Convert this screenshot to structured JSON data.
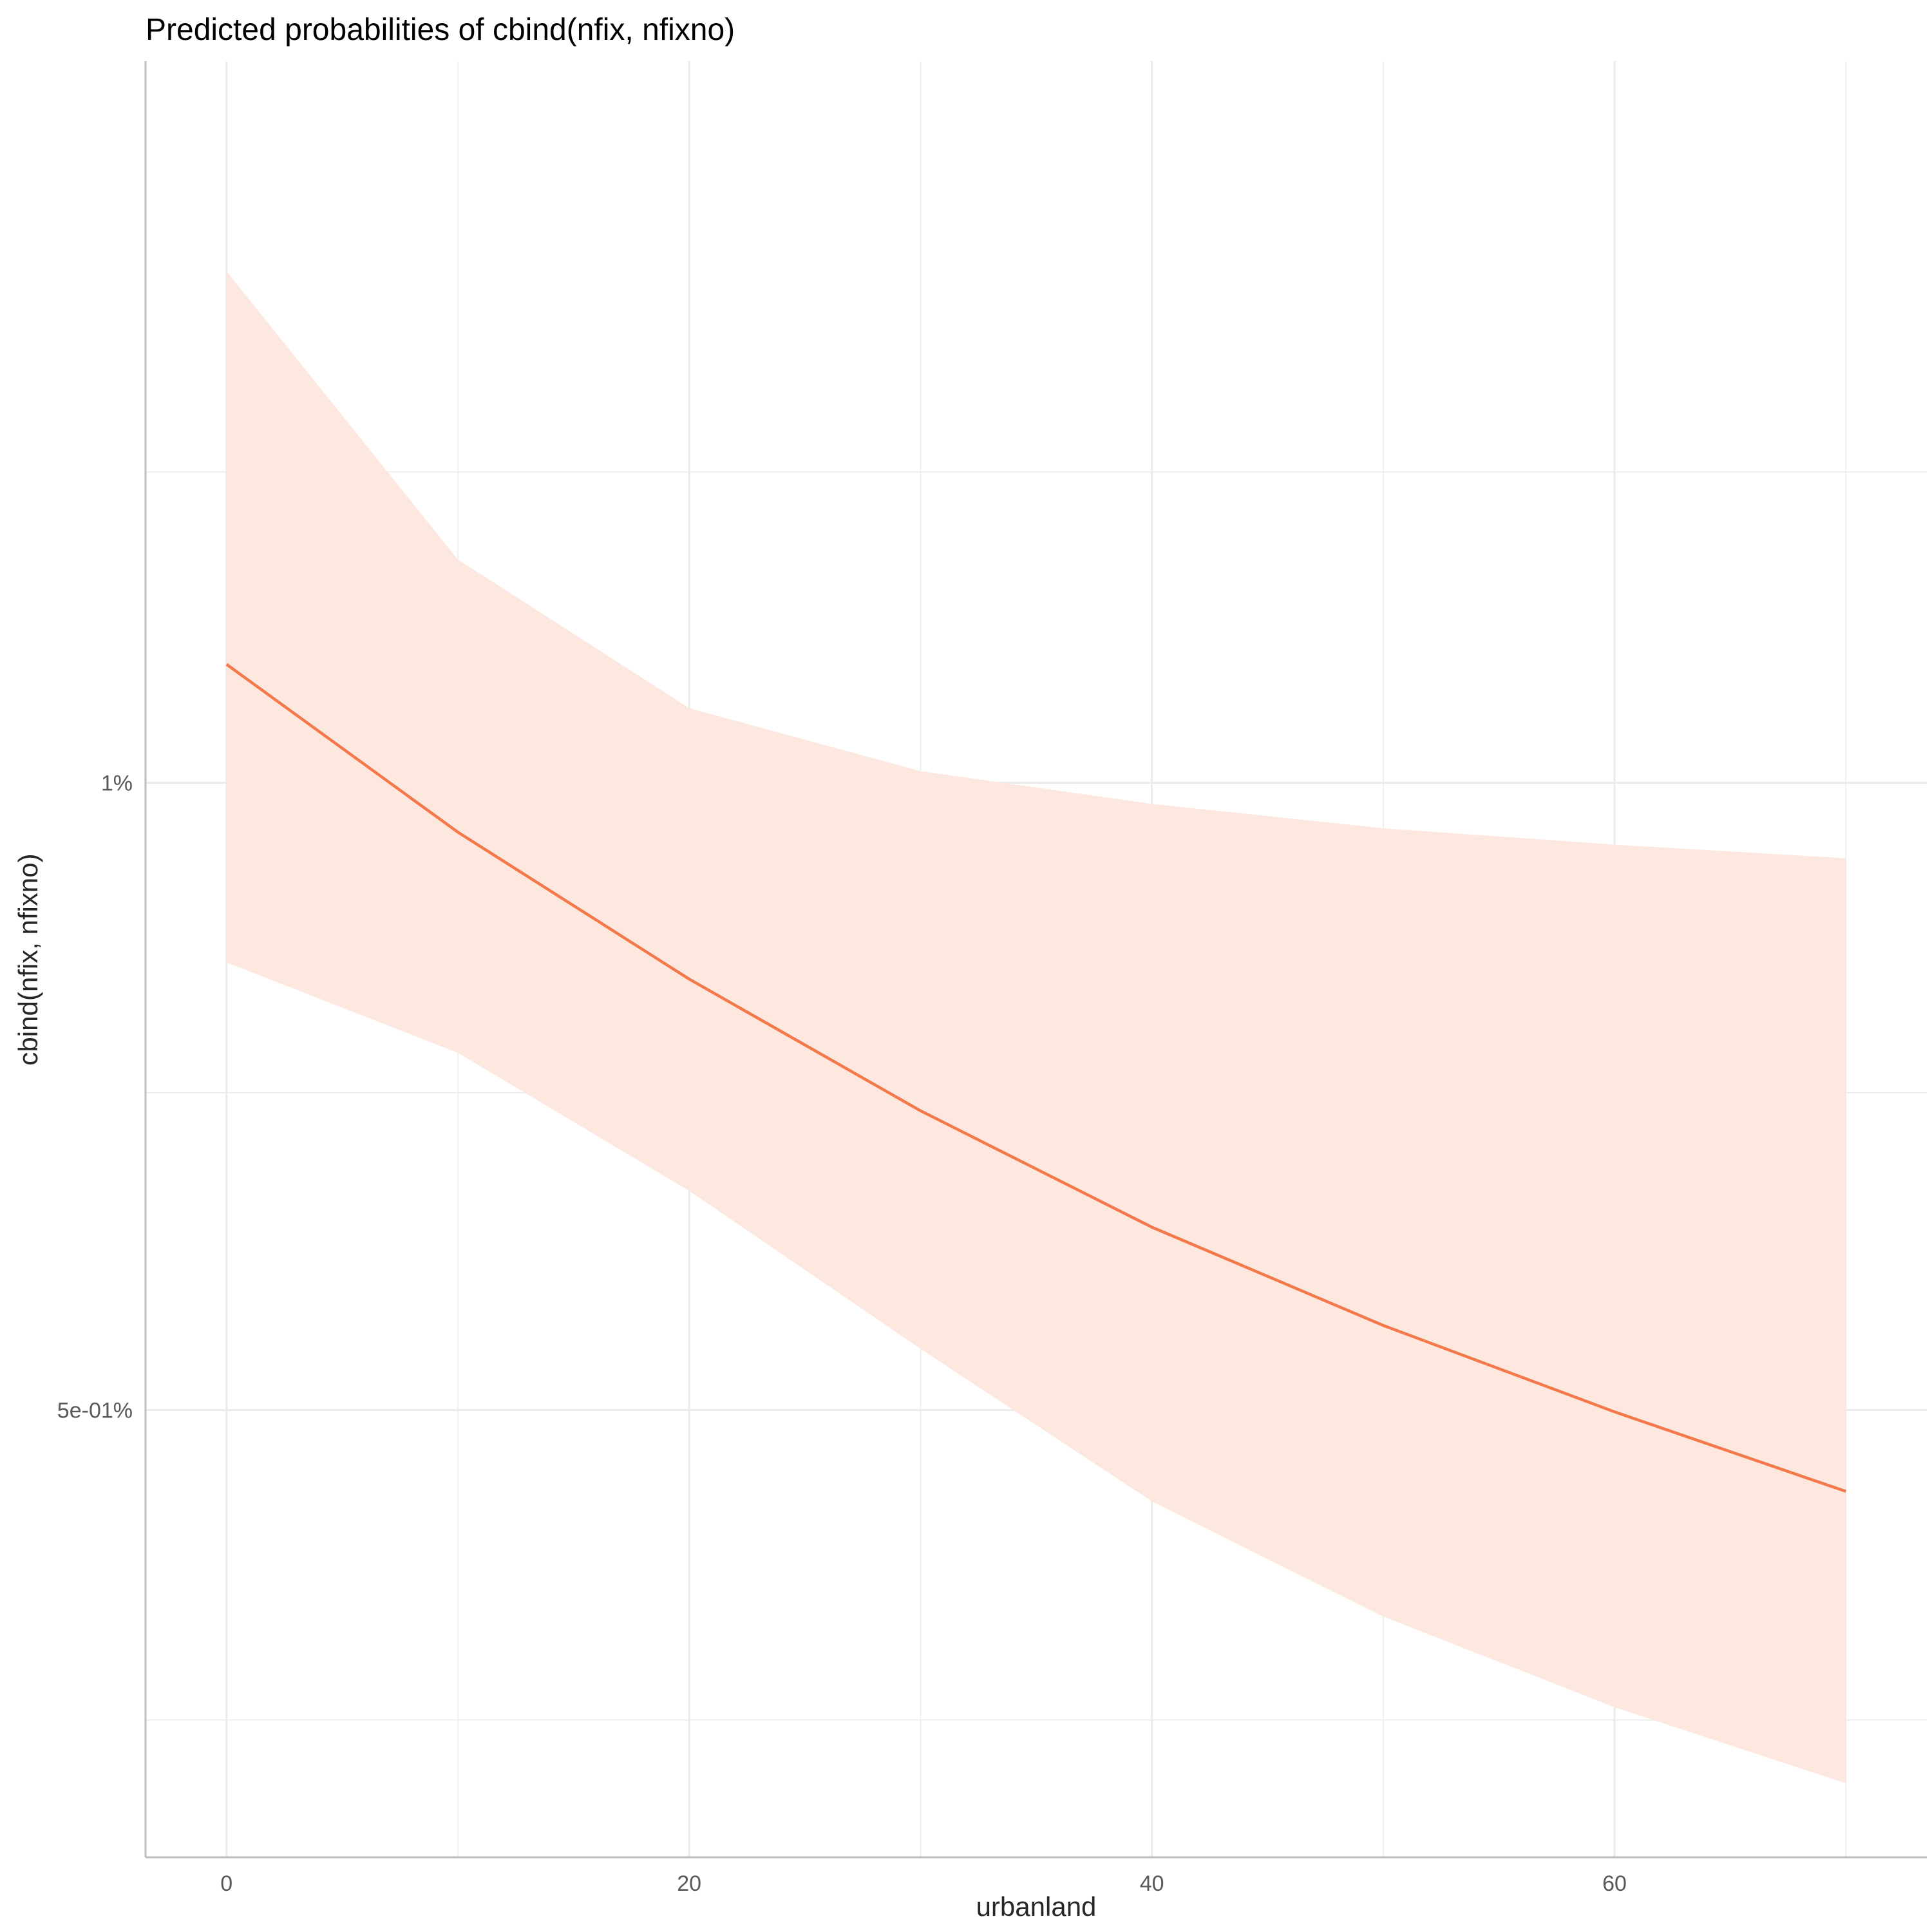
{
  "chart_data": {
    "type": "line",
    "title": "Predicted probabilities of cbind(nfix, nfixno)",
    "xlabel": "urbanland",
    "ylabel": "cbind(nfix, nfixno)",
    "y_scale": "log",
    "x_ticks": [
      0,
      20,
      40,
      60
    ],
    "x_tick_labels": [
      "0",
      "20",
      "40",
      "60"
    ],
    "y_ticks": [
      1.0,
      0.5
    ],
    "y_tick_labels": [
      "1%",
      "5e-01%"
    ],
    "y_minor_gridlines": [
      1.41,
      0.71,
      0.355
    ],
    "xlim": [
      -3.5,
      73.5
    ],
    "ylim": [
      0.305,
      2.22
    ],
    "grid": true,
    "colors": {
      "line": "#f4784a",
      "ribbon": "#fde8df",
      "grid": "#ebebeb",
      "axis": "#bdbdbd"
    },
    "series": [
      {
        "x": [
          0,
          10,
          20,
          30,
          40,
          50,
          60,
          70
        ],
        "predicted": [
          1.14,
          0.947,
          0.805,
          0.696,
          0.612,
          0.549,
          0.499,
          0.457
        ],
        "ci_low": [
          0.82,
          0.742,
          0.637,
          0.535,
          0.452,
          0.398,
          0.36,
          0.331
        ],
        "ci_high": [
          1.76,
          1.28,
          1.086,
          1.013,
          0.977,
          0.951,
          0.934,
          0.92
        ]
      }
    ]
  }
}
